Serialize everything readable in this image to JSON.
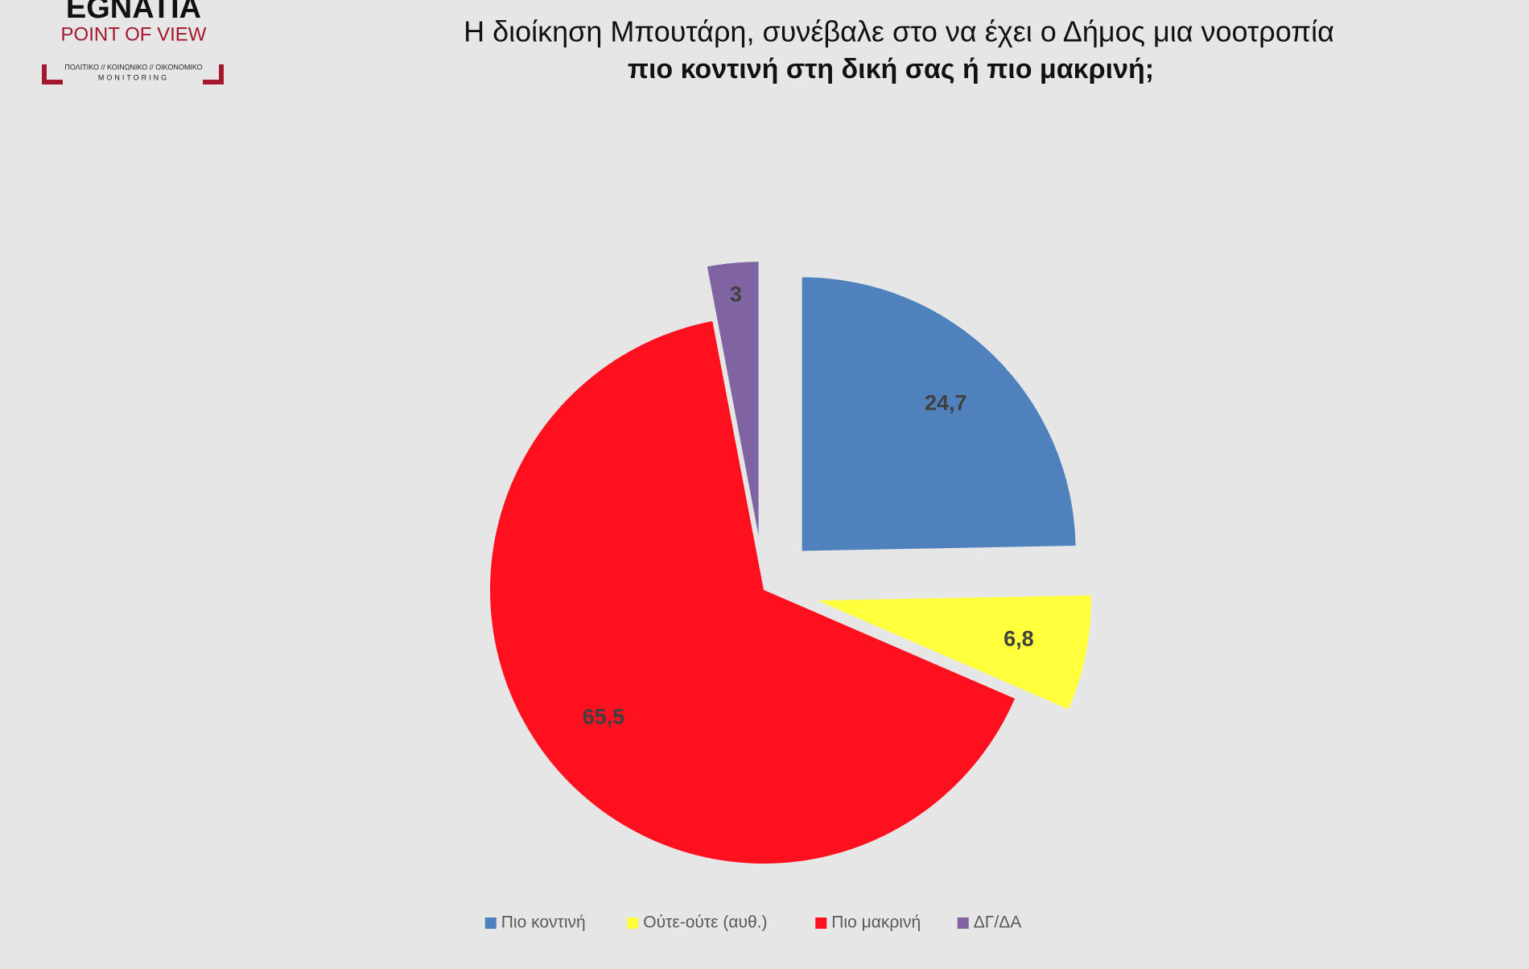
{
  "logo": {
    "name": "EGNATIA",
    "tagline": "POINT OF VIEW",
    "topics": "ΠΟΛΙΤΙΚΟ // ΚΟΙΝΩΝΙΚΟ // ΟΙΚΟΝΟΜΙΚΟ",
    "sub": "MONITORING"
  },
  "chart_data": {
    "type": "pie",
    "title": "Η διοίκηση Μπουτάρη, συνέβαλε στο να έχει ο Δήμος μια νοοτροπία",
    "subtitle": "πιο κοντινή στη δική σας ή πιο μακρινή;",
    "categories": [
      "Πιο κοντινή",
      "Ούτε-ούτε (αυθ.)",
      "Πιο μακρινή",
      "ΔΓ/ΔΑ"
    ],
    "values": [
      24.7,
      6.8,
      65.5,
      3
    ],
    "value_labels": [
      "24,7",
      "6,8",
      "65,5",
      "3"
    ],
    "colors": [
      "#4f81bd",
      "#ffff3c",
      "#ff101f",
      "#8064a2"
    ],
    "legend": "bottom"
  }
}
